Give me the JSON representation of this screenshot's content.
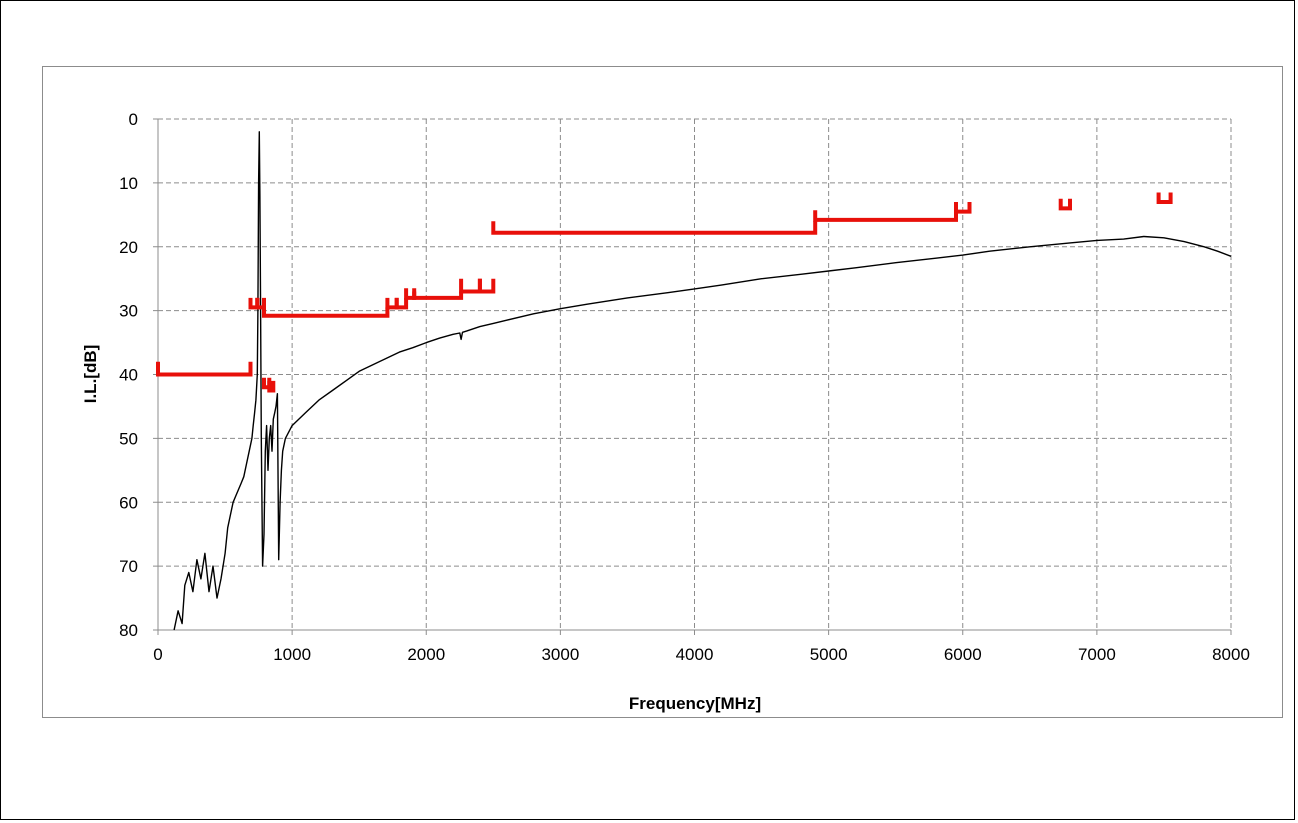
{
  "chart_data": {
    "type": "line",
    "title": "",
    "xlabel": "Frequency[MHz]",
    "ylabel": "I.L.[dB]",
    "xlim": [
      0,
      8000
    ],
    "ylim": [
      0,
      80
    ],
    "y_inverted": true,
    "grid": true,
    "legend": "none",
    "xticks": [
      0,
      1000,
      2000,
      3000,
      4000,
      5000,
      6000,
      7000,
      8000
    ],
    "yticks": [
      0,
      10,
      20,
      30,
      40,
      50,
      60,
      70,
      80
    ],
    "xtick_labels": [
      "0",
      "1000",
      "2000",
      "3000",
      "4000",
      "5000",
      "6000",
      "7000",
      "8000"
    ],
    "ytick_labels": [
      "0",
      "10",
      "20",
      "30",
      "40",
      "50",
      "60",
      "70",
      "80"
    ],
    "series": [
      {
        "color": "#000000",
        "x": [
          120,
          150,
          180,
          200,
          230,
          260,
          290,
          320,
          350,
          380,
          410,
          440,
          470,
          500,
          520,
          540,
          560,
          580,
          600,
          620,
          640,
          660,
          680,
          700,
          710,
          720,
          730,
          740,
          745,
          750,
          755,
          760,
          765,
          770,
          780,
          790,
          800,
          810,
          820,
          830,
          840,
          850,
          860,
          870,
          880,
          890,
          900,
          910,
          920,
          930,
          950,
          1000,
          1100,
          1200,
          1300,
          1400,
          1500,
          1600,
          1700,
          1800,
          1900,
          2000,
          2100,
          2200,
          2250,
          2260,
          2270,
          2300,
          2400,
          2500,
          2600,
          2800,
          3000,
          3200,
          3500,
          3800,
          4000,
          4200,
          4500,
          4800,
          5000,
          5200,
          5500,
          5800,
          6000,
          6200,
          6500,
          6800,
          7000,
          7200,
          7350,
          7500,
          7650,
          7800,
          7900,
          8000
        ],
        "y": [
          80,
          77,
          79,
          73,
          71,
          74,
          69,
          72,
          68,
          74,
          70,
          75,
          72,
          68,
          64,
          62,
          60,
          59,
          58,
          57,
          56,
          54,
          52,
          50,
          48,
          46,
          44,
          40,
          30,
          10,
          2,
          12,
          30,
          50,
          70,
          65,
          52,
          48,
          55,
          50,
          48,
          52,
          47,
          46,
          45,
          43,
          69,
          60,
          55,
          52,
          50,
          48,
          46,
          44,
          42.5,
          41,
          39.5,
          38.5,
          37.5,
          36.5,
          35.8,
          35,
          34.3,
          33.7,
          33.5,
          34.5,
          33.4,
          33.2,
          32.5,
          32,
          31.5,
          30.5,
          29.7,
          29,
          28,
          27.2,
          26.6,
          26,
          25,
          24.3,
          23.8,
          23.3,
          22.5,
          21.8,
          21.3,
          20.7,
          20,
          19.4,
          19,
          18.8,
          18.4,
          18.6,
          19.2,
          20,
          20.7,
          21.5
        ]
      }
    ],
    "limit_segments": [
      {
        "x": [
          0,
          0,
          690,
          690
        ],
        "y": [
          38,
          40,
          40,
          38
        ]
      },
      {
        "x": [
          690,
          690,
          740,
          740
        ],
        "y": [
          28,
          29.5,
          29.5,
          28
        ]
      },
      {
        "x": [
          740,
          740,
          790,
          790
        ],
        "y": [
          28,
          29.5,
          29.5,
          28
        ]
      },
      {
        "x": [
          790,
          790,
          1710,
          1710
        ],
        "y": [
          29.5,
          30.8,
          30.8,
          29.5
        ]
      },
      {
        "x": [
          1710,
          1710,
          1780,
          1780
        ],
        "y": [
          28,
          29.5,
          29.5,
          28
        ]
      },
      {
        "x": [
          1780,
          1780,
          1850,
          1850
        ],
        "y": [
          28,
          29.5,
          29.5,
          28
        ]
      },
      {
        "x": [
          1850,
          1850,
          1910,
          1910
        ],
        "y": [
          26.5,
          28,
          28,
          26.5
        ]
      },
      {
        "x": [
          1910,
          1910,
          2260,
          2260
        ],
        "y": [
          27,
          28,
          28,
          27
        ]
      },
      {
        "x": [
          2260,
          2260,
          2400,
          2400
        ],
        "y": [
          25,
          27,
          27,
          25
        ]
      },
      {
        "x": [
          2400,
          2400,
          2500,
          2500
        ],
        "y": [
          25,
          27,
          27,
          25
        ]
      },
      {
        "x": [
          790,
          790,
          830,
          830
        ],
        "y": [
          40.5,
          42,
          42,
          40.5
        ]
      },
      {
        "x": [
          830,
          830,
          860,
          860
        ],
        "y": [
          41,
          42.5,
          42.5,
          41
        ]
      },
      {
        "x": [
          2500,
          2500,
          4900,
          4900
        ],
        "y": [
          16,
          17.8,
          17.8,
          16
        ]
      },
      {
        "x": [
          4900,
          4900,
          5950,
          5950
        ],
        "y": [
          14.3,
          15.8,
          15.8,
          14.3
        ]
      },
      {
        "x": [
          5950,
          5950,
          6050,
          6050
        ],
        "y": [
          13,
          14.5,
          14.5,
          13
        ]
      },
      {
        "x": [
          6730,
          6730,
          6800,
          6800
        ],
        "y": [
          12.5,
          14,
          14,
          12.5
        ]
      },
      {
        "x": [
          7460,
          7460,
          7550,
          7550
        ],
        "y": [
          11.5,
          13,
          13,
          11.5
        ]
      }
    ],
    "limit_color": "#e8100a"
  }
}
